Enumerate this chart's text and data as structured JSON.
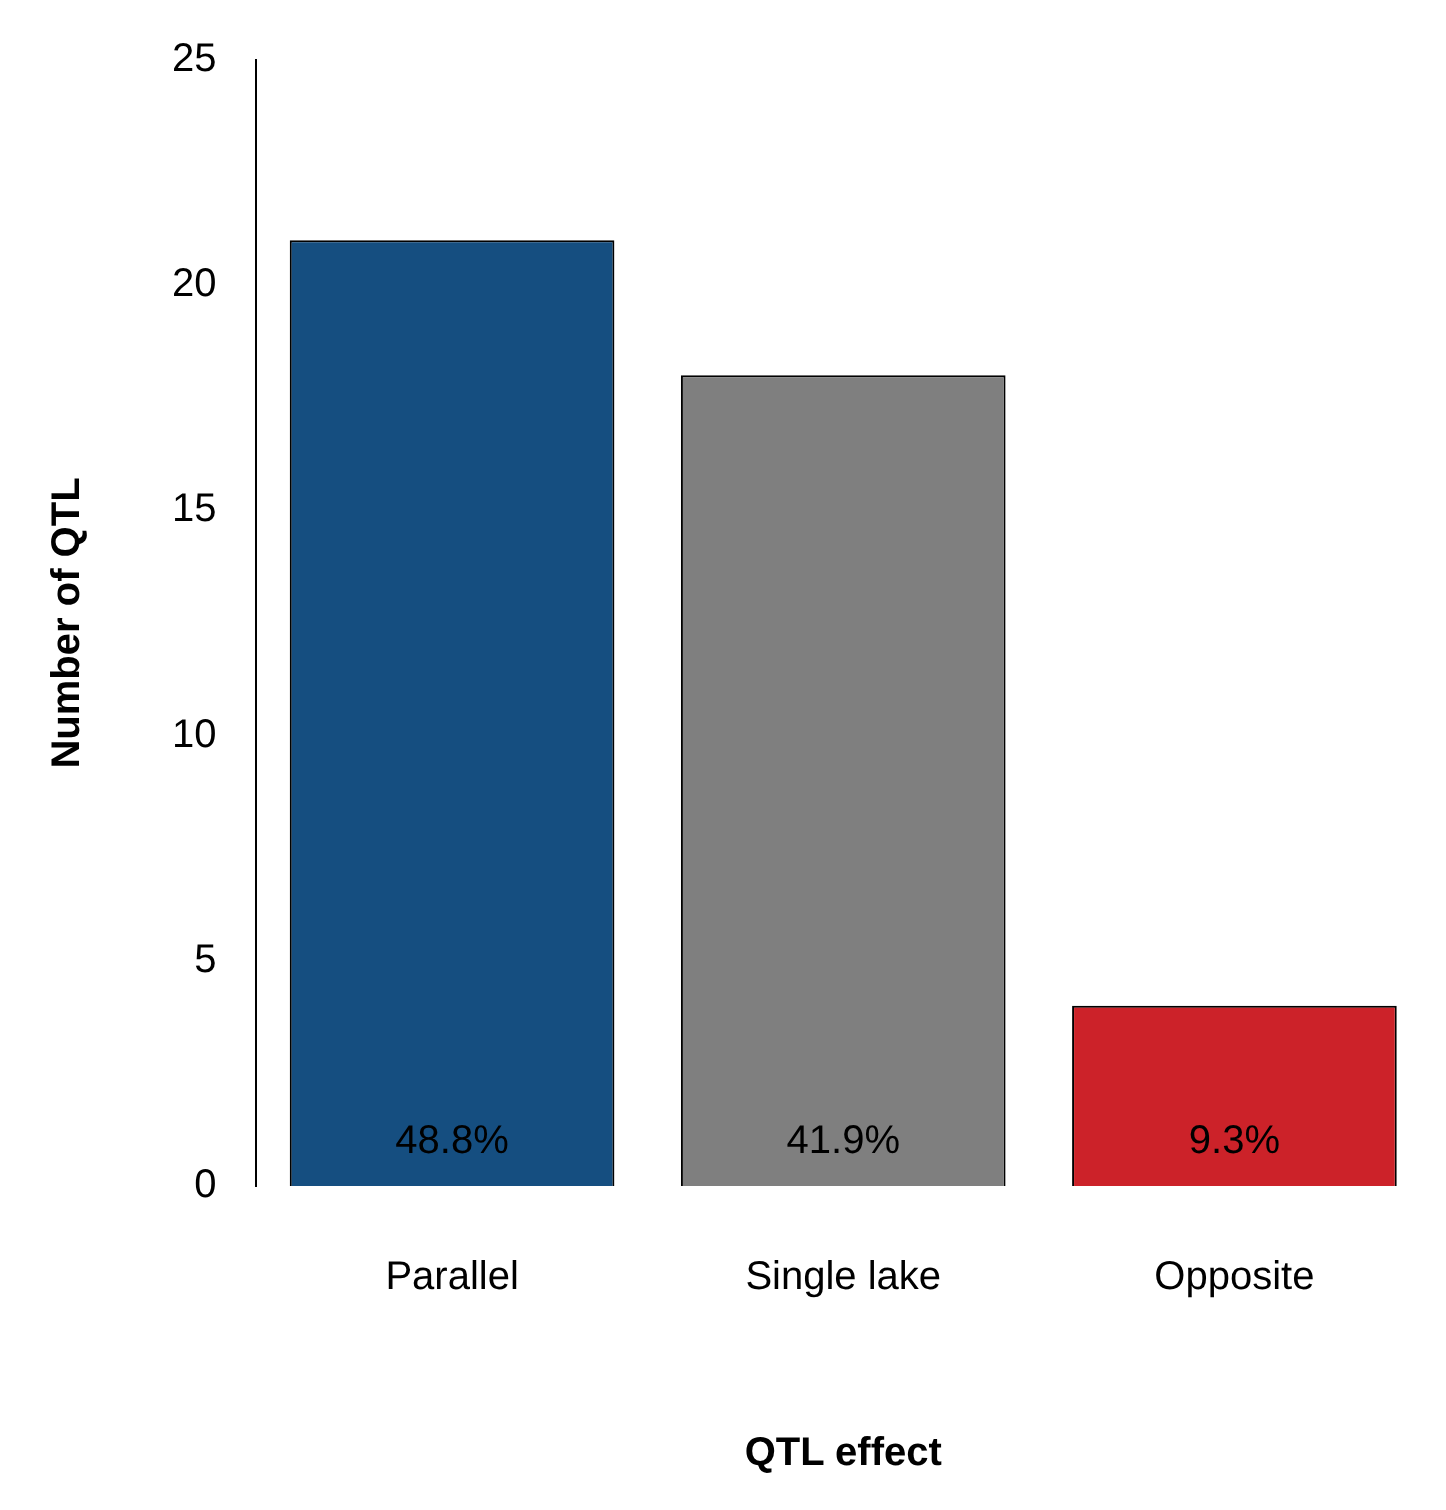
{
  "chart_data": {
    "type": "bar",
    "xlabel": "QTL effect",
    "ylabel": "Number of QTL",
    "categories": [
      "Parallel",
      "Single lake",
      "Opposite"
    ],
    "values": [
      21,
      18,
      4
    ],
    "colors": [
      "#154e80",
      "#7f7f7f",
      "#cc2229"
    ],
    "annotations": [
      "48.8%",
      "41.9%",
      "9.3%"
    ],
    "ylim": [
      0,
      25
    ],
    "yticks": [
      0,
      5,
      10,
      15,
      20,
      25
    ],
    "grid": false,
    "legend": false
  }
}
